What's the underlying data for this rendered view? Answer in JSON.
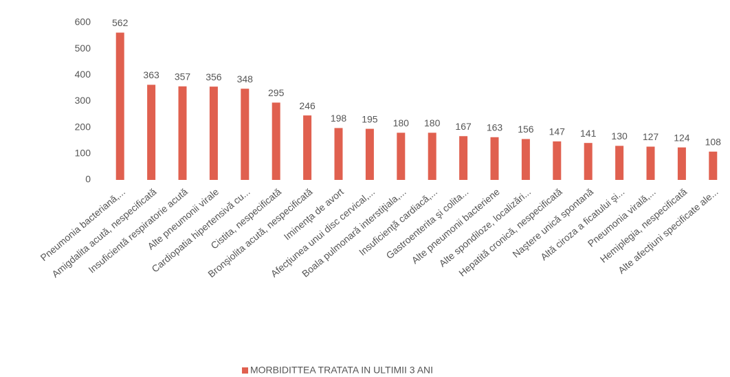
{
  "chart_data": {
    "type": "bar",
    "categories": [
      "Pneumonia bacteriană,...",
      "Amigdalita acută, nespecificată",
      "Insuficientă respiratorie acută",
      "Alte pneumonii virale",
      "Cardiopatia hipertensivă cu...",
      "Cistita, nespecificată",
      "Bronşiolita acută, nespecificată",
      "Iminenţa de avort",
      "Afecţiunea unui disc cervical,...",
      "Boala pulmonară interstiţiala,...",
      "Insuficienţă cardiacă,...",
      "Gastroenterita şi colita...",
      "Alte pneumonii bacteriene",
      "Alte spondiloze, localizări...",
      "Hepatită cronică, nespecificată",
      "Naştere unică spontană",
      "Altă ciroza a ficatului şi...",
      "Pneumonia virală,...",
      "Hemiplegia, nespecificată",
      "Alte afecţiuni specificate ale..."
    ],
    "series": [
      {
        "name": "MORBIDITTEA TRATATA IN ULTIMII 3 ANI",
        "color": "#e0604f",
        "values": [
          562,
          363,
          357,
          356,
          348,
          295,
          246,
          198,
          195,
          180,
          180,
          167,
          163,
          156,
          147,
          141,
          130,
          127,
          124,
          108
        ]
      }
    ],
    "ylim": [
      0,
      600
    ],
    "yticks": [
      0,
      100,
      200,
      300,
      400,
      500,
      600
    ],
    "grid": false,
    "legend": "bottom"
  }
}
